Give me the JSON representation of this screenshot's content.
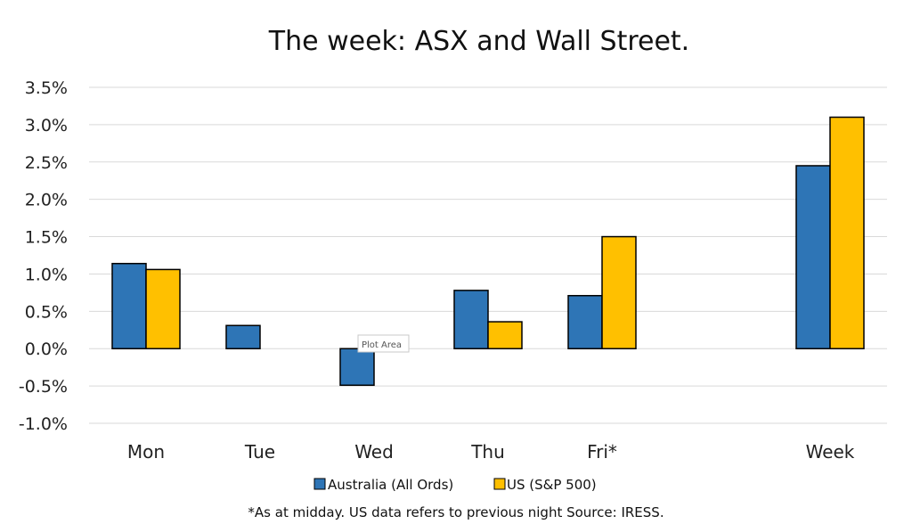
{
  "chart_data": {
    "type": "bar",
    "title": "The week:  ASX and Wall Street.",
    "categories": [
      "Mon",
      "Tue",
      "Wed",
      "Thu",
      "Fri*",
      "",
      "Week"
    ],
    "series": [
      {
        "name": "Australia (All Ords)",
        "color": "#2e75b6",
        "values": [
          1.14,
          0.31,
          -0.49,
          0.78,
          0.71,
          null,
          2.45
        ]
      },
      {
        "name": "US (S&P 500)",
        "color": "#ffc000",
        "values": [
          1.06,
          null,
          null,
          0.36,
          1.5,
          null,
          3.1
        ]
      }
    ],
    "y_ticks": [
      "3.5%",
      "3.0%",
      "2.5%",
      "2.0%",
      "1.5%",
      "1.0%",
      "0.5%",
      "0.0%",
      "-0.5%",
      "-1.0%"
    ],
    "ylim": [
      -1.0,
      3.5
    ],
    "grid": true,
    "legend_position": "bottom",
    "tooltip": "Plot Area",
    "footnote": "*As at midday. US data refers to previous night  Source:  IRESS."
  }
}
